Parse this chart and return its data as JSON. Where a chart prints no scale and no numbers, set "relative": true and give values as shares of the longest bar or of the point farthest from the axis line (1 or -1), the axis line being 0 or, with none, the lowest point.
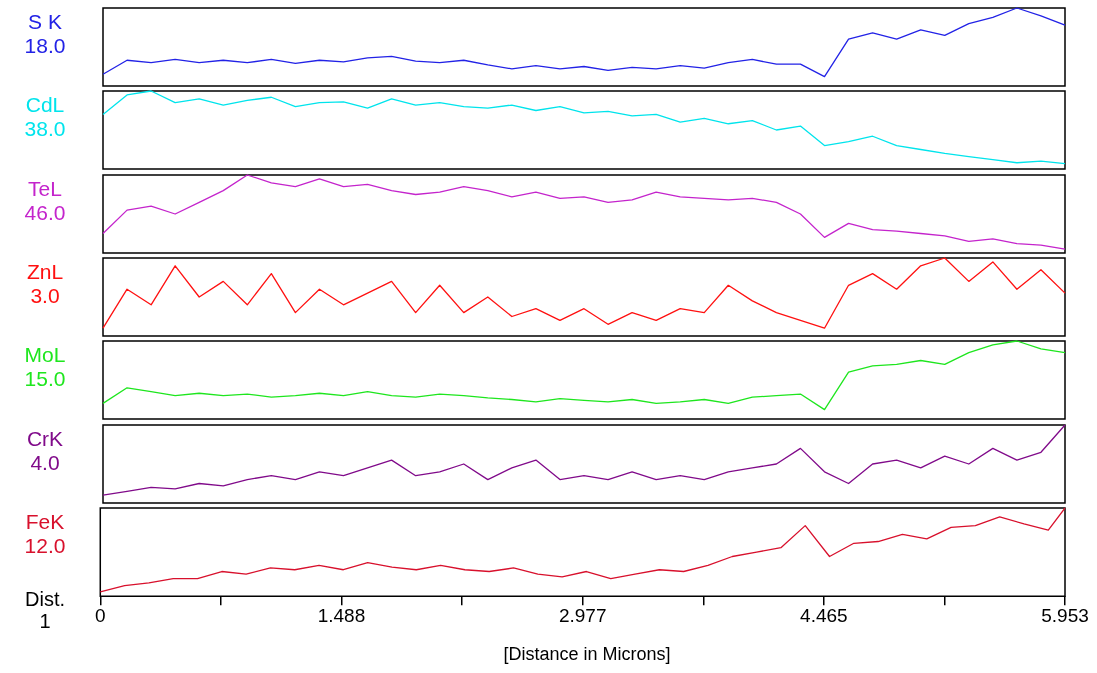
{
  "chart_data": [
    {
      "type": "line",
      "ylabel": "S K",
      "annotations": [
        "18.0"
      ],
      "relative": true,
      "tick_labels": false,
      "color": "#2222e6",
      "categories": [
        null,
        null,
        null,
        null,
        null,
        null,
        null,
        null,
        null,
        null,
        null,
        null,
        null,
        null,
        null,
        null,
        null,
        null,
        null,
        null,
        null,
        null,
        null,
        null,
        null,
        null,
        null,
        null,
        null,
        null,
        null,
        null,
        null,
        null,
        null,
        null,
        null,
        null,
        null,
        null,
        null
      ],
      "values": [
        0.15,
        0.33,
        0.3,
        0.34,
        0.3,
        0.33,
        0.3,
        0.34,
        0.29,
        0.33,
        0.31,
        0.36,
        0.38,
        0.32,
        0.3,
        0.33,
        0.27,
        0.22,
        0.26,
        0.22,
        0.25,
        0.2,
        0.24,
        0.22,
        0.26,
        0.23,
        0.3,
        0.34,
        0.28,
        0.28,
        0.12,
        0.6,
        0.68,
        0.6,
        0.72,
        0.65,
        0.8,
        0.88,
        1.0,
        0.9,
        0.78
      ]
    },
    {
      "type": "line",
      "ylabel": "CdL",
      "annotations": [
        "38.0"
      ],
      "relative": true,
      "tick_labels": false,
      "color": "#00e4ec",
      "categories": [
        null,
        null,
        null,
        null,
        null,
        null,
        null,
        null,
        null,
        null,
        null,
        null,
        null,
        null,
        null,
        null,
        null,
        null,
        null,
        null,
        null,
        null,
        null,
        null,
        null,
        null,
        null,
        null,
        null,
        null,
        null,
        null,
        null,
        null,
        null,
        null,
        null,
        null,
        null,
        null,
        null
      ],
      "values": [
        0.7,
        0.95,
        1.0,
        0.85,
        0.9,
        0.82,
        0.88,
        0.92,
        0.8,
        0.85,
        0.86,
        0.78,
        0.9,
        0.82,
        0.85,
        0.8,
        0.78,
        0.82,
        0.75,
        0.8,
        0.72,
        0.74,
        0.68,
        0.7,
        0.6,
        0.65,
        0.58,
        0.62,
        0.5,
        0.55,
        0.3,
        0.35,
        0.42,
        0.3,
        0.25,
        0.2,
        0.16,
        0.12,
        0.08,
        0.1,
        0.07
      ]
    },
    {
      "type": "line",
      "ylabel": "TeL",
      "annotations": [
        "46.0"
      ],
      "relative": true,
      "tick_labels": false,
      "color": "#c424cc",
      "categories": [
        null,
        null,
        null,
        null,
        null,
        null,
        null,
        null,
        null,
        null,
        null,
        null,
        null,
        null,
        null,
        null,
        null,
        null,
        null,
        null,
        null,
        null,
        null,
        null,
        null,
        null,
        null,
        null,
        null,
        null,
        null,
        null,
        null,
        null,
        null,
        null,
        null,
        null,
        null,
        null,
        null
      ],
      "values": [
        0.25,
        0.55,
        0.6,
        0.5,
        0.65,
        0.8,
        1.0,
        0.9,
        0.85,
        0.95,
        0.85,
        0.88,
        0.8,
        0.75,
        0.78,
        0.85,
        0.8,
        0.72,
        0.78,
        0.7,
        0.72,
        0.65,
        0.68,
        0.78,
        0.72,
        0.7,
        0.68,
        0.7,
        0.65,
        0.5,
        0.2,
        0.38,
        0.3,
        0.28,
        0.25,
        0.22,
        0.15,
        0.18,
        0.12,
        0.1,
        0.05
      ]
    },
    {
      "type": "line",
      "ylabel": "ZnL",
      "annotations": [
        "3.0"
      ],
      "relative": true,
      "tick_labels": false,
      "color": "#ff1010",
      "categories": [
        null,
        null,
        null,
        null,
        null,
        null,
        null,
        null,
        null,
        null,
        null,
        null,
        null,
        null,
        null,
        null,
        null,
        null,
        null,
        null,
        null,
        null,
        null,
        null,
        null,
        null,
        null,
        null,
        null,
        null,
        null,
        null,
        null,
        null,
        null,
        null,
        null,
        null,
        null,
        null,
        null
      ],
      "values": [
        0.1,
        0.6,
        0.4,
        0.9,
        0.5,
        0.7,
        0.4,
        0.8,
        0.3,
        0.6,
        0.4,
        0.55,
        0.7,
        0.3,
        0.65,
        0.3,
        0.5,
        0.25,
        0.35,
        0.2,
        0.35,
        0.15,
        0.3,
        0.2,
        0.35,
        0.3,
        0.65,
        0.45,
        0.3,
        0.2,
        0.1,
        0.65,
        0.8,
        0.6,
        0.9,
        1.0,
        0.7,
        0.95,
        0.6,
        0.85,
        0.55
      ]
    },
    {
      "type": "line",
      "ylabel": "MoL",
      "annotations": [
        "15.0"
      ],
      "relative": true,
      "tick_labels": false,
      "color": "#1ee61e",
      "categories": [
        null,
        null,
        null,
        null,
        null,
        null,
        null,
        null,
        null,
        null,
        null,
        null,
        null,
        null,
        null,
        null,
        null,
        null,
        null,
        null,
        null,
        null,
        null,
        null,
        null,
        null,
        null,
        null,
        null,
        null,
        null,
        null,
        null,
        null,
        null,
        null,
        null,
        null,
        null,
        null,
        null
      ],
      "values": [
        0.2,
        0.4,
        0.35,
        0.3,
        0.33,
        0.3,
        0.32,
        0.28,
        0.3,
        0.33,
        0.3,
        0.35,
        0.3,
        0.28,
        0.32,
        0.3,
        0.27,
        0.25,
        0.22,
        0.26,
        0.24,
        0.22,
        0.25,
        0.2,
        0.22,
        0.25,
        0.2,
        0.28,
        0.3,
        0.32,
        0.12,
        0.6,
        0.68,
        0.7,
        0.75,
        0.7,
        0.85,
        0.95,
        1.0,
        0.9,
        0.85
      ]
    },
    {
      "type": "line",
      "ylabel": "CrK",
      "annotations": [
        "4.0"
      ],
      "relative": true,
      "tick_labels": false,
      "color": "#800a8a",
      "categories": [
        null,
        null,
        null,
        null,
        null,
        null,
        null,
        null,
        null,
        null,
        null,
        null,
        null,
        null,
        null,
        null,
        null,
        null,
        null,
        null,
        null,
        null,
        null,
        null,
        null,
        null,
        null,
        null,
        null,
        null,
        null,
        null,
        null,
        null,
        null,
        null,
        null,
        null,
        null,
        null,
        null
      ],
      "values": [
        0.1,
        0.15,
        0.2,
        0.18,
        0.25,
        0.22,
        0.3,
        0.35,
        0.3,
        0.4,
        0.35,
        0.45,
        0.55,
        0.35,
        0.4,
        0.5,
        0.3,
        0.45,
        0.55,
        0.3,
        0.35,
        0.3,
        0.4,
        0.3,
        0.35,
        0.3,
        0.4,
        0.45,
        0.5,
        0.7,
        0.4,
        0.25,
        0.5,
        0.55,
        0.45,
        0.6,
        0.5,
        0.7,
        0.55,
        0.65,
        1.0
      ]
    },
    {
      "type": "line",
      "ylabel": "FeK",
      "annotations": [
        "12.0",
        "Dist.",
        "1"
      ],
      "relative": true,
      "tick_labels": "x",
      "xlabel": "[Distance in Microns]",
      "xlim": [
        0,
        5.953
      ],
      "xticks": [
        0,
        {
          "value": 0.744,
          "label": null
        },
        1.488,
        {
          "value": 2.233,
          "label": null
        },
        2.977,
        {
          "value": 3.721,
          "label": null
        },
        4.465,
        {
          "value": 5.209,
          "label": null
        },
        5.953
      ],
      "color": "#d8102c",
      "x": [
        0,
        0.15,
        0.3,
        0.45,
        0.6,
        0.75,
        0.9,
        1.05,
        1.2,
        1.35,
        1.5,
        1.65,
        1.8,
        1.95,
        2.1,
        2.25,
        2.4,
        2.55,
        2.7,
        2.85,
        3.0,
        3.15,
        3.3,
        3.45,
        3.6,
        3.75,
        3.9,
        4.05,
        4.2,
        4.35,
        4.5,
        4.65,
        4.8,
        4.95,
        5.1,
        5.25,
        5.4,
        5.55,
        5.7,
        5.85,
        5.953
      ],
      "values": [
        0.05,
        0.12,
        0.15,
        0.2,
        0.2,
        0.28,
        0.25,
        0.32,
        0.3,
        0.35,
        0.3,
        0.38,
        0.33,
        0.3,
        0.35,
        0.3,
        0.28,
        0.32,
        0.25,
        0.22,
        0.28,
        0.2,
        0.25,
        0.3,
        0.28,
        0.35,
        0.45,
        0.5,
        0.55,
        0.8,
        0.45,
        0.6,
        0.62,
        0.7,
        0.65,
        0.78,
        0.8,
        0.9,
        0.82,
        0.75,
        1.0
      ]
    }
  ]
}
